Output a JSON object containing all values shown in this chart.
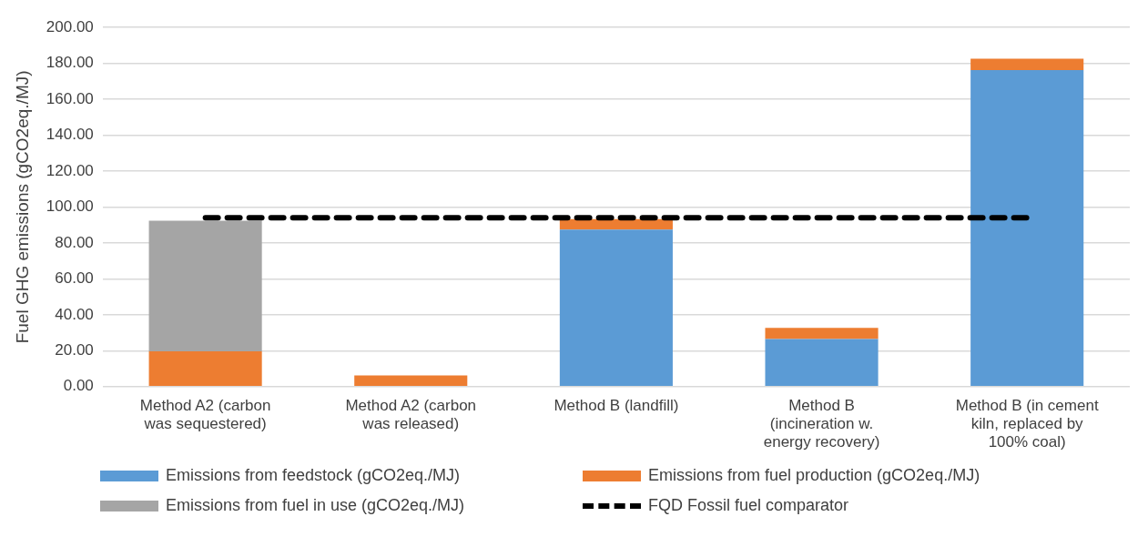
{
  "chart_data": {
    "type": "bar",
    "stacked": true,
    "ylabel": "Fuel GHG emissions (gCO2eq./MJ)",
    "categories": [
      "Method A2 (carbon was sequestered)",
      "Method A2 (carbon was released)",
      "Method B (landfill)",
      "Method B (incineration w. energy recovery)",
      "Method B (in cement kiln, replaced by 100% coal)"
    ],
    "series": [
      {
        "name": "Emissions from feedstock (gCO2eq./MJ)",
        "color": "#5b9bd5",
        "values": [
          0,
          0,
          87.4,
          26.5,
          176.2
        ]
      },
      {
        "name": "Emissions from fuel production (gCO2eq./MJ)",
        "color": "#ed7d31",
        "values": [
          19.6,
          6.2,
          5.8,
          6.2,
          6.3
        ]
      },
      {
        "name": "Emissions from fuel in use (gCO2eq./MJ)",
        "color": "#a5a5a5",
        "values": [
          72.8,
          0,
          0,
          0,
          0
        ]
      },
      {
        "name": "FQD Fossil fuel comparator",
        "color": "#000000",
        "type": "line",
        "line_style": "dashed",
        "marker": "none",
        "values": [
          94,
          94,
          94,
          94,
          94
        ]
      }
    ],
    "ylim": [
      0,
      200
    ],
    "yticks": [
      {
        "value": 0,
        "label": "0.00"
      },
      {
        "value": 20,
        "label": "20.00"
      },
      {
        "value": 40,
        "label": "40.00"
      },
      {
        "value": 60,
        "label": "60.00"
      },
      {
        "value": 80,
        "label": "80.00"
      },
      {
        "value": 100,
        "label": "100.00"
      },
      {
        "value": 120,
        "label": "120.00"
      },
      {
        "value": 140,
        "label": "140.00"
      },
      {
        "value": 160,
        "label": "160.00"
      },
      {
        "value": 180,
        "label": "180.00"
      },
      {
        "value": 200,
        "label": "200.00"
      }
    ],
    "grid": "y",
    "legend": "bottom"
  }
}
